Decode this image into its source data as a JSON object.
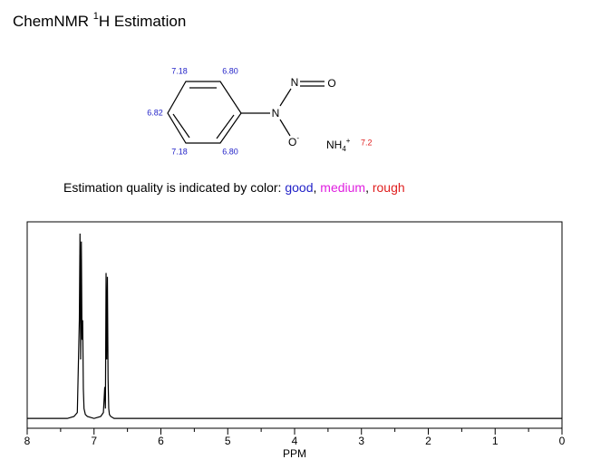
{
  "header": {
    "title": [
      "ChemNMR ",
      "1",
      "H Estimation"
    ]
  },
  "structure": {
    "shifts": [
      "7.18",
      "6.80",
      "6.82",
      "7.18",
      "6.80"
    ],
    "atoms": [
      "N",
      "N",
      "O",
      "O",
      "-",
      "NH",
      "4",
      "+"
    ],
    "ion_shift": "7.2"
  },
  "legend": [
    "Estimation quality is indicated by color: ",
    "good",
    ", ",
    "medium",
    ", ",
    "rough"
  ],
  "chart_data": {
    "type": "line",
    "x_label": "PPM",
    "x": [
      8,
      7.4,
      7.3,
      7.25,
      7.22,
      7.21,
      7.2,
      7.19,
      7.18,
      7.17,
      7.16,
      7.15,
      7.13,
      7.1,
      7.0,
      6.9,
      6.86,
      6.84,
      6.83,
      6.82,
      6.81,
      6.8,
      6.79,
      6.78,
      6.77,
      6.75,
      6.7,
      6.6,
      0
    ],
    "values": [
      0,
      0,
      0.01,
      0.03,
      0.5,
      0.94,
      0.3,
      0.9,
      0.4,
      0.5,
      0.15,
      0.05,
      0.02,
      0.01,
      0,
      0.01,
      0.03,
      0.16,
      0.05,
      0.74,
      0.3,
      0.72,
      0.2,
      0.05,
      0.02,
      0.01,
      0,
      0,
      0
    ],
    "color": "#000000",
    "xlim": [
      8,
      0
    ],
    "ylim": [
      -0.05,
      1
    ],
    "xticks": [
      8,
      7,
      6,
      5,
      4,
      3,
      2,
      1,
      0
    ],
    "xminorticks": [
      7.5,
      6.5,
      5.5,
      4.5,
      3.5,
      2.5,
      1.5,
      0.5
    ]
  }
}
